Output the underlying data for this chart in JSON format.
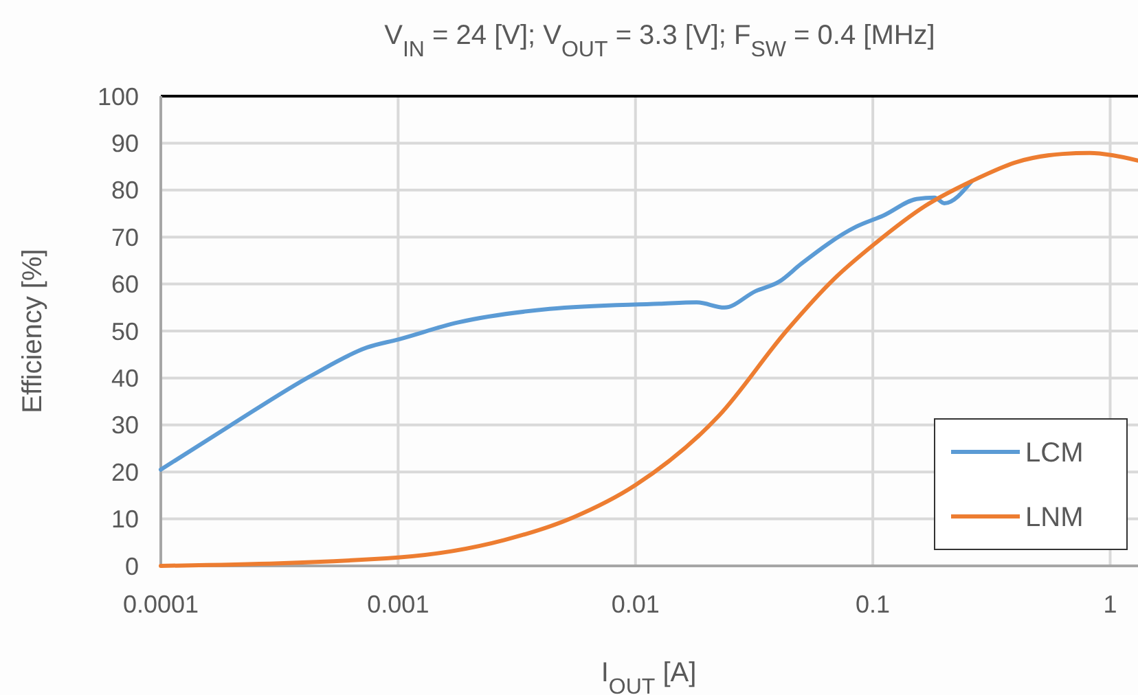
{
  "chart_data": {
    "type": "line",
    "title": "V$_{IN}$ = 24 [V]; V$_{OUT}$ = 3.3 [V]; F$_{SW}$ = 0.4 [MHz]",
    "xlabel": "I$_{OUT}$ [A]",
    "ylabel": "Efficiency [%]",
    "log": "x",
    "xlim": [
      0.0001,
      1.31
    ],
    "xticks": [
      0.0001,
      0.001,
      0.01,
      0.1,
      1
    ],
    "ylim": [
      0,
      100
    ],
    "yticks": [
      0,
      10,
      20,
      30,
      40,
      50,
      60,
      70,
      80,
      90,
      100
    ],
    "grid": true,
    "legend": "bottom right",
    "line_style": "solid",
    "marker": "none",
    "series": [
      {
        "name": "LCM",
        "color": "#5b9bd5",
        "x": [
          0.0001,
          0.000195,
          0.000434,
          0.00074,
          0.001,
          0.00178,
          0.00435,
          0.0126,
          0.0181,
          0.0237,
          0.0321,
          0.0403,
          0.0499,
          0.085,
          0.111,
          0.153,
          0.182,
          0.2,
          0.261
        ],
        "values": [
          20.5,
          29.8,
          40.6,
          46.5,
          48.2,
          51.8,
          54.7,
          55.8,
          56.1,
          55,
          58.5,
          60.5,
          64.3,
          72.2,
          74.6,
          78.1,
          78.4,
          77.2,
          81.9
        ]
      },
      {
        "name": "LNM",
        "color": "#ed7d31",
        "x": [
          0.0001,
          0.001,
          0.0028,
          0.00546,
          0.01,
          0.0224,
          0.0437,
          0.0687,
          0.1026,
          0.166,
          0.261,
          0.405,
          0.63,
          0.82,
          1.03,
          1.31
        ],
        "values": [
          0,
          1.8,
          5.5,
          10.3,
          17.2,
          31.9,
          50.3,
          61.1,
          68.7,
          76.6,
          81.9,
          86,
          87.7,
          87.9,
          87.4,
          86.3
        ]
      }
    ]
  }
}
